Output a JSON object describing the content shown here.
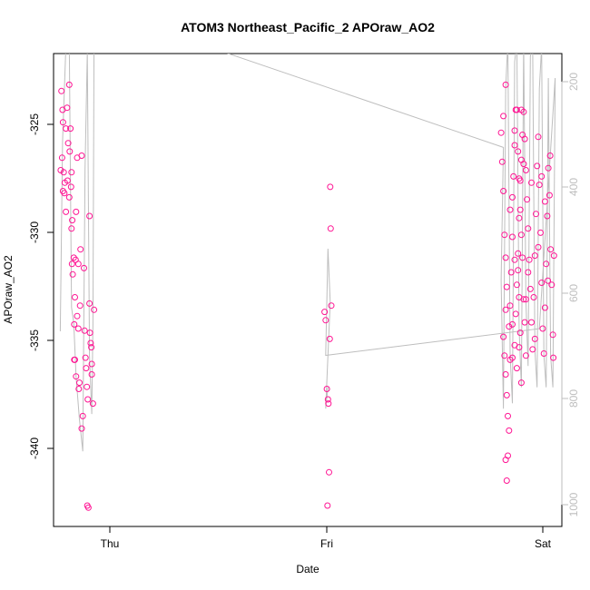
{
  "chart_data": {
    "type": "scatter",
    "title": "ATOM3 Northeast_Pacific_2 APOraw_AO2",
    "xlabel": "Date",
    "ylabel": "APOraw_AO2",
    "x_ticks": [
      "Thu",
      "Fri",
      "Sat"
    ],
    "y_ticks": [
      -325,
      -330,
      -335,
      -340
    ],
    "y2_ticks": [
      200,
      400,
      600,
      800,
      1000
    ],
    "x_unit": "days since Thu 00:00",
    "xlim": [
      -0.21,
      2.05
    ],
    "ylim": [
      -343.6,
      -320.9
    ],
    "y2lim": [
      1021,
      134
    ],
    "colors": {
      "points": "#ff1493",
      "altitude_line": "#bebebe",
      "axis": "#000000",
      "right_axis": "#bebebe"
    },
    "series": [
      {
        "name": "APOraw_AO2",
        "points": [
          [
            -0.175,
            -322.7
          ],
          [
            -0.17,
            -323.6
          ],
          [
            -0.168,
            -324.2
          ],
          [
            -0.172,
            -325.9
          ],
          [
            -0.178,
            -326.5
          ],
          [
            -0.165,
            -326.6
          ],
          [
            -0.16,
            -327.1
          ],
          [
            -0.168,
            -327.5
          ],
          [
            -0.162,
            -327.6
          ],
          [
            -0.155,
            -328.5
          ],
          [
            -0.15,
            -323.5
          ],
          [
            -0.155,
            -324.5
          ],
          [
            -0.145,
            -325.2
          ],
          [
            -0.148,
            -327.0
          ],
          [
            -0.14,
            -327.8
          ],
          [
            -0.14,
            -322.4
          ],
          [
            -0.135,
            -324.5
          ],
          [
            -0.138,
            -325.6
          ],
          [
            -0.13,
            -326.6
          ],
          [
            -0.132,
            -327.3
          ],
          [
            -0.127,
            -328.9
          ],
          [
            -0.13,
            -329.3
          ],
          [
            -0.128,
            -331.0
          ],
          [
            -0.125,
            -331.5
          ],
          [
            -0.12,
            -330.7
          ],
          [
            -0.118,
            -335.6
          ],
          [
            -0.115,
            -335.6
          ],
          [
            -0.118,
            -333.9
          ],
          [
            -0.115,
            -332.6
          ],
          [
            -0.112,
            -330.8
          ],
          [
            -0.11,
            -328.5
          ],
          [
            -0.105,
            -325.9
          ],
          [
            -0.1,
            -331.0
          ],
          [
            -0.1,
            -334.1
          ],
          [
            -0.098,
            -337.0
          ],
          [
            -0.095,
            -336.7
          ],
          [
            -0.092,
            -333.0
          ],
          [
            -0.09,
            -330.3
          ],
          [
            -0.085,
            -325.8
          ],
          [
            -0.085,
            -338.9
          ],
          [
            -0.08,
            -338.3
          ],
          [
            -0.075,
            -331.2
          ],
          [
            -0.072,
            -334.2
          ],
          [
            -0.068,
            -335.5
          ],
          [
            -0.065,
            -336.0
          ],
          [
            -0.062,
            -336.9
          ],
          [
            -0.058,
            -337.5
          ],
          [
            -0.06,
            -342.6
          ],
          [
            -0.055,
            -342.7
          ],
          [
            -0.05,
            -328.7
          ],
          [
            -0.05,
            -332.9
          ],
          [
            -0.048,
            -334.3
          ],
          [
            -0.045,
            -334.8
          ],
          [
            -0.042,
            -335.0
          ],
          [
            -0.04,
            -335.8
          ],
          [
            -0.04,
            -336.3
          ],
          [
            -0.035,
            -337.7
          ],
          [
            -0.03,
            -333.2
          ],
          [
            -0.11,
            -336.4
          ],
          [
            -0.105,
            -333.5
          ],
          [
            0.995,
            -333.3
          ],
          [
            1.0,
            -333.7
          ],
          [
            1.005,
            -337.0
          ],
          [
            1.01,
            -337.5
          ],
          [
            1.012,
            -337.7
          ],
          [
            1.015,
            -341.0
          ],
          [
            1.008,
            -342.6
          ],
          [
            1.02,
            -327.3
          ],
          [
            1.022,
            -329.3
          ],
          [
            1.025,
            -333.0
          ],
          [
            1.018,
            -334.6
          ],
          [
            1.78,
            -324.7
          ],
          [
            1.79,
            -323.9
          ],
          [
            1.8,
            -322.4
          ],
          [
            1.785,
            -326.1
          ],
          [
            1.79,
            -327.5
          ],
          [
            1.795,
            -329.6
          ],
          [
            1.8,
            -330.7
          ],
          [
            1.805,
            -332.1
          ],
          [
            1.8,
            -333.2
          ],
          [
            1.79,
            -334.5
          ],
          [
            1.795,
            -335.4
          ],
          [
            1.8,
            -336.3
          ],
          [
            1.805,
            -337.3
          ],
          [
            1.81,
            -338.3
          ],
          [
            1.815,
            -339.0
          ],
          [
            1.8,
            -340.4
          ],
          [
            1.81,
            -340.2
          ],
          [
            1.805,
            -341.4
          ],
          [
            1.82,
            -335.6
          ],
          [
            1.815,
            -334.0
          ],
          [
            1.82,
            -333.0
          ],
          [
            1.825,
            -331.4
          ],
          [
            1.83,
            -329.7
          ],
          [
            1.83,
            -327.8
          ],
          [
            1.835,
            -326.8
          ],
          [
            1.84,
            -325.3
          ],
          [
            1.84,
            -324.6
          ],
          [
            1.845,
            -323.6
          ],
          [
            1.85,
            -323.6
          ],
          [
            1.855,
            -325.6
          ],
          [
            1.86,
            -326.9
          ],
          [
            1.865,
            -328.4
          ],
          [
            1.87,
            -329.6
          ],
          [
            1.875,
            -330.7
          ],
          [
            1.88,
            -332.7
          ],
          [
            1.885,
            -333.8
          ],
          [
            1.89,
            -335.4
          ],
          [
            1.855,
            -331.3
          ],
          [
            1.86,
            -332.6
          ],
          [
            1.865,
            -334.3
          ],
          [
            1.87,
            -336.7
          ],
          [
            1.83,
            -335.5
          ],
          [
            1.84,
            -334.9
          ],
          [
            1.845,
            -333.4
          ],
          [
            1.85,
            -332.0
          ],
          [
            1.855,
            -330.5
          ],
          [
            1.86,
            -328.8
          ],
          [
            1.865,
            -327.0
          ],
          [
            1.87,
            -326.0
          ],
          [
            1.875,
            -324.8
          ],
          [
            1.88,
            -323.7
          ],
          [
            1.885,
            -325.0
          ],
          [
            1.89,
            -326.5
          ],
          [
            1.895,
            -327.9
          ],
          [
            1.9,
            -329.3
          ],
          [
            1.905,
            -330.8
          ],
          [
            1.91,
            -332.2
          ],
          [
            1.915,
            -333.8
          ],
          [
            1.92,
            -335.1
          ],
          [
            1.925,
            -332.6
          ],
          [
            1.93,
            -330.6
          ],
          [
            1.935,
            -328.6
          ],
          [
            1.94,
            -326.3
          ],
          [
            1.945,
            -324.9
          ],
          [
            1.95,
            -327.2
          ],
          [
            1.955,
            -329.5
          ],
          [
            1.96,
            -331.9
          ],
          [
            1.965,
            -334.1
          ],
          [
            1.97,
            -335.3
          ],
          [
            1.975,
            -333.1
          ],
          [
            1.98,
            -331.0
          ],
          [
            1.985,
            -328.7
          ],
          [
            1.99,
            -326.4
          ],
          [
            1.995,
            -327.7
          ],
          [
            2.0,
            -330.3
          ],
          [
            2.005,
            -332.0
          ],
          [
            2.01,
            -334.4
          ],
          [
            2.012,
            -335.5
          ],
          [
            2.015,
            -330.6
          ],
          [
            1.998,
            -325.8
          ],
          [
            1.988,
            -331.8
          ],
          [
            1.975,
            -328.0
          ],
          [
            1.96,
            -326.8
          ],
          [
            1.945,
            -330.2
          ],
          [
            1.93,
            -334.6
          ],
          [
            1.915,
            -327.1
          ],
          [
            1.9,
            -331.4
          ],
          [
            1.89,
            -332.7
          ],
          [
            1.88,
            -326.2
          ],
          [
            1.87,
            -323.6
          ],
          [
            1.86,
            -335.0
          ],
          [
            1.85,
            -336.0
          ],
          [
            1.84,
            -330.8
          ],
          [
            1.83,
            -333.9
          ],
          [
            1.82,
            -328.4
          ]
        ]
      },
      {
        "name": "altitude",
        "axis": "right",
        "points": [
          [
            -0.18,
            655
          ],
          [
            -0.17,
            300
          ],
          [
            -0.155,
            120
          ],
          [
            -0.14,
            110
          ],
          [
            -0.13,
            610
          ],
          [
            -0.12,
            640
          ],
          [
            -0.11,
            740
          ],
          [
            -0.095,
            820
          ],
          [
            -0.08,
            880
          ],
          [
            -0.07,
            350
          ],
          [
            -0.06,
            130
          ],
          [
            -0.05,
            700
          ],
          [
            -0.04,
            810
          ],
          [
            -0.035,
            640
          ],
          [
            -0.03,
            110
          ],
          [
            0.4,
            110
          ],
          [
            1.79,
            310
          ],
          [
            1.78,
            560
          ],
          [
            1.79,
            800
          ],
          [
            1.8,
            200
          ],
          [
            1.81,
            110
          ],
          [
            1.82,
            700
          ],
          [
            1.83,
            790
          ],
          [
            1.84,
            150
          ],
          [
            1.85,
            110
          ],
          [
            1.86,
            650
          ],
          [
            1.87,
            760
          ],
          [
            1.88,
            110
          ],
          [
            1.89,
            600
          ],
          [
            1.9,
            720
          ],
          [
            1.91,
            140
          ],
          [
            1.92,
            110
          ],
          [
            1.93,
            690
          ],
          [
            1.94,
            760
          ],
          [
            1.95,
            200
          ],
          [
            1.96,
            120
          ],
          [
            1.97,
            700
          ],
          [
            1.98,
            760
          ],
          [
            1.99,
            180
          ],
          [
            2.0,
            700
          ],
          [
            2.01,
            760
          ],
          [
            2.02,
            180
          ],
          [
            1.95,
            650
          ],
          [
            1.0,
            700
          ],
          [
            1.01,
            500
          ],
          [
            1.02,
            600
          ],
          [
            1.0,
            800
          ],
          [
            1.01,
            760
          ]
        ]
      }
    ]
  }
}
